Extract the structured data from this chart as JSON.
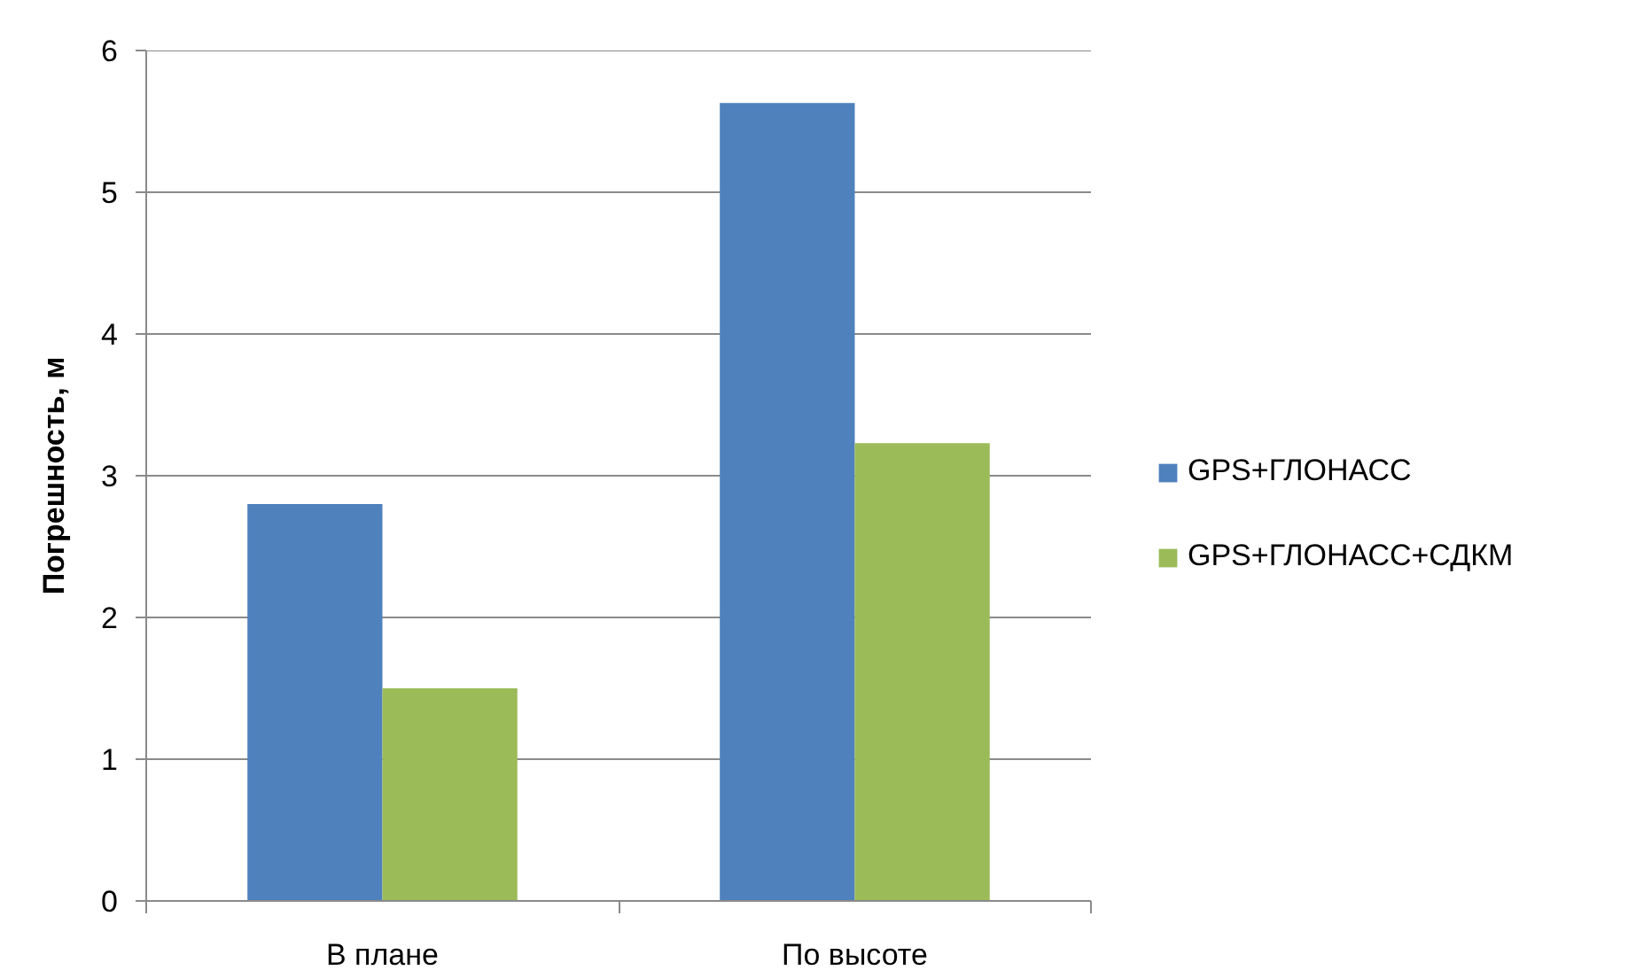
{
  "chart_data": {
    "type": "bar",
    "ylabel": "Погрешность, м",
    "categories": [
      "В плане",
      "По высоте"
    ],
    "series": [
      {
        "name": "GPS+ГЛОНАСС",
        "color": "#4f81bd",
        "values": [
          2.8,
          5.63
        ]
      },
      {
        "name": "GPS+ГЛОНАСС+СДКМ",
        "color": "#9bbb59",
        "values": [
          1.5,
          3.23
        ]
      }
    ],
    "ylim": [
      0,
      6
    ],
    "yticks": [
      0,
      1,
      2,
      3,
      4,
      5,
      6
    ],
    "grid": "y",
    "legend": "right"
  }
}
